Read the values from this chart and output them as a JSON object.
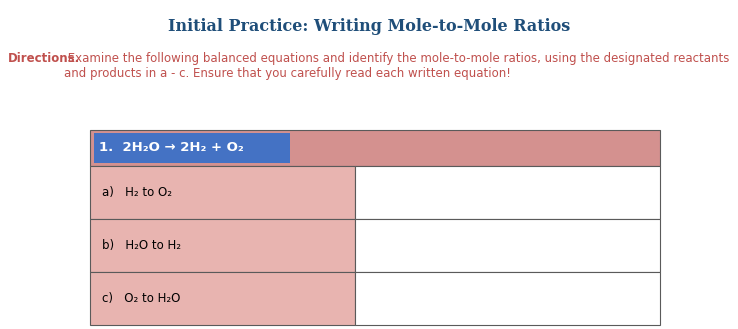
{
  "title": "Initial Practice: Writing Mole-to-Mole Ratios",
  "title_color": "#1F4E79",
  "title_fontsize": 11.5,
  "directions_bold": "Directions.",
  "directions_rest": " Examine the following balanced equations and identify the mole-to-mole ratios, using the designated reactants\nand products in a - c. Ensure that you carefully read each written equation!",
  "directions_color": "#C0504D",
  "directions_fontsize": 8.5,
  "bg_color": "#FFFFFF",
  "table_header_bg": "#D4918F",
  "table_row_bg": "#E8B4B0",
  "table_white_bg": "#FFFFFF",
  "table_border_color": "#5A5A5A",
  "equation_highlight": "#4472C4",
  "equation_text_color": "#FFFFFF",
  "equation_label": "1.  ",
  "equation_body": "2H₂O → 2H₂ + O₂",
  "row_a_label": "a)   H₂ to O₂",
  "row_b_label": "b)   H₂O to H₂",
  "row_c_label": "c)   O₂ to H₂O",
  "label_fontsize": 8.5,
  "fig_w": 7.38,
  "fig_h": 3.29,
  "dpi": 100
}
